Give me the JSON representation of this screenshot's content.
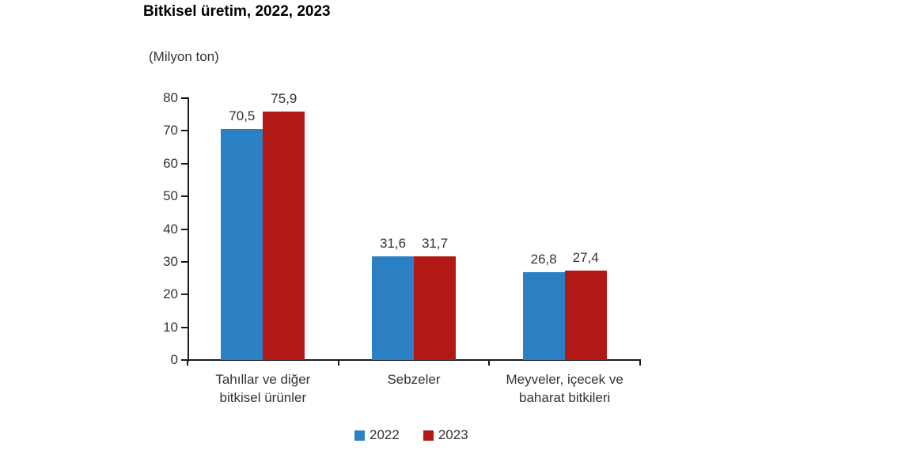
{
  "chart": {
    "title": "Bitkisel üretim, 2022, 2023",
    "unit_label": "(Milyon ton)"
  },
  "chart_data": {
    "type": "bar",
    "title": "Bitkisel üretim, 2022, 2023",
    "unit_label": "(Milyon ton)",
    "categories": [
      "Tahıllar ve diğer bitkisel ürünler",
      "Sebzeler",
      "Meyveler, içecek ve baharat bitkileri"
    ],
    "category_lines": [
      [
        "Tahıllar ve diğer",
        "bitkisel ürünler"
      ],
      [
        "Sebzeler"
      ],
      [
        "Meyveler, içecek ve",
        "baharat bitkileri"
      ]
    ],
    "series": [
      {
        "name": "2022",
        "color": "#2b80c4",
        "values": [
          70.5,
          31.6,
          26.8
        ],
        "value_labels": [
          "70,5",
          "31,6",
          "26,8"
        ]
      },
      {
        "name": "2023",
        "color": "#b11917",
        "values": [
          75.9,
          31.7,
          27.4
        ],
        "value_labels": [
          "75,9",
          "31,7",
          "27,4"
        ]
      }
    ],
    "ylim": [
      0,
      80
    ],
    "ytick_step": 10,
    "ytick_labels": [
      "0",
      "10",
      "20",
      "30",
      "40",
      "50",
      "60",
      "70",
      "80"
    ],
    "grid": false,
    "legend_position": "bottom",
    "decimal_separator": ",",
    "colors": {
      "series_2022": "#2b80c4",
      "series_2023": "#b11917",
      "axis": "#1a1a1a",
      "text": "#333333"
    }
  }
}
